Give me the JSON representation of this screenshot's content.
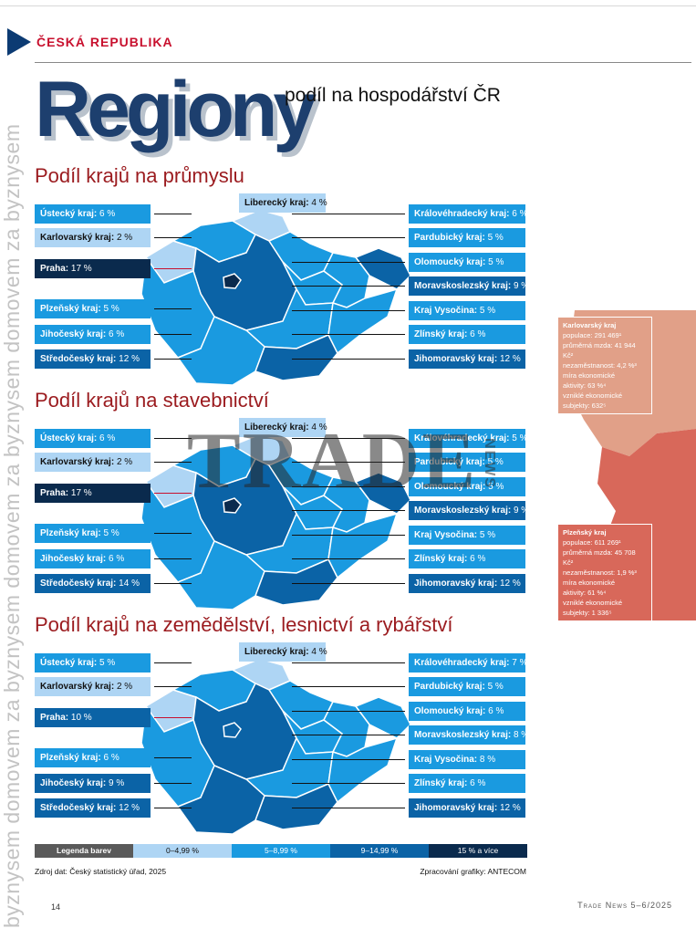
{
  "header": {
    "section": "ČESKÁ REPUBLIKA",
    "title": "Regiony",
    "subtitle": "podíl na hospodářství ČR"
  },
  "vertical_text": "byznysem domovem za byznysem domovem za byznysem domovem za byznysem",
  "sections": [
    {
      "heading": "Podíl krajů na průmyslu",
      "labels": [
        {
          "name": "Ústecký kraj:",
          "value": "6 %",
          "cls": "c1",
          "side": "L",
          "row": 0
        },
        {
          "name": "Karlovarský kraj:",
          "value": "2 %",
          "cls": "c0",
          "side": "L",
          "row": 1
        },
        {
          "name": "Praha:",
          "value": "17 %",
          "cls": "c3",
          "side": "L",
          "row": 2
        },
        {
          "name": "Plzeňský kraj:",
          "value": "5 %",
          "cls": "c1",
          "side": "L",
          "row": 4
        },
        {
          "name": "Jihočeský kraj:",
          "value": "6 %",
          "cls": "c1",
          "side": "L",
          "row": 5
        },
        {
          "name": "Středočeský kraj:",
          "value": "12 %",
          "cls": "c2",
          "side": "L",
          "row": 6
        },
        {
          "name": "Liberecký kraj:",
          "value": "4 %",
          "cls": "c0",
          "side": "T",
          "row": 0
        },
        {
          "name": "Královéhradecký kraj:",
          "value": "6 %",
          "cls": "c1",
          "side": "R",
          "row": 0
        },
        {
          "name": "Pardubický kraj:",
          "value": "5 %",
          "cls": "c1",
          "side": "R",
          "row": 1
        },
        {
          "name": "Olomoucký kraj:",
          "value": "5 %",
          "cls": "c1",
          "side": "R",
          "row": 2
        },
        {
          "name": "Moravskoslezský kraj:",
          "value": "9 %",
          "cls": "c2",
          "side": "R",
          "row": 3
        },
        {
          "name": "Kraj Vysočina:",
          "value": "5 %",
          "cls": "c1",
          "side": "R",
          "row": 4
        },
        {
          "name": "Zlínský kraj:",
          "value": "6 %",
          "cls": "c1",
          "side": "R",
          "row": 5
        },
        {
          "name": "Jihomoravský kraj:",
          "value": "12 %",
          "cls": "c2",
          "side": "R",
          "row": 6
        }
      ]
    },
    {
      "heading": "Podíl krajů na stavebnictví",
      "labels": [
        {
          "name": "Ústecký kraj:",
          "value": "6 %",
          "cls": "c1",
          "side": "L",
          "row": 0
        },
        {
          "name": "Karlovarský kraj:",
          "value": "2 %",
          "cls": "c0",
          "side": "L",
          "row": 1
        },
        {
          "name": "Praha:",
          "value": "17 %",
          "cls": "c3",
          "side": "L",
          "row": 2
        },
        {
          "name": "Plzeňský kraj:",
          "value": "5 %",
          "cls": "c1",
          "side": "L",
          "row": 4
        },
        {
          "name": "Jihočeský kraj:",
          "value": "6 %",
          "cls": "c1",
          "side": "L",
          "row": 5
        },
        {
          "name": "Středočeský kraj:",
          "value": "14 %",
          "cls": "c2",
          "side": "L",
          "row": 6
        },
        {
          "name": "Liberecký kraj:",
          "value": "4 %",
          "cls": "c0",
          "side": "T",
          "row": 0
        },
        {
          "name": "Královéhradecký kraj:",
          "value": "5 %",
          "cls": "c1",
          "side": "R",
          "row": 0
        },
        {
          "name": "Pardubický kraj:",
          "value": "5 %",
          "cls": "c1",
          "side": "R",
          "row": 1
        },
        {
          "name": "Olomoucký kraj:",
          "value": "5 %",
          "cls": "c1",
          "side": "R",
          "row": 2
        },
        {
          "name": "Moravskoslezský kraj:",
          "value": "9 %",
          "cls": "c2",
          "side": "R",
          "row": 3
        },
        {
          "name": "Kraj Vysočina:",
          "value": "5 %",
          "cls": "c1",
          "side": "R",
          "row": 4
        },
        {
          "name": "Zlínský kraj:",
          "value": "6 %",
          "cls": "c1",
          "side": "R",
          "row": 5
        },
        {
          "name": "Jihomoravský kraj:",
          "value": "12 %",
          "cls": "c2",
          "side": "R",
          "row": 6
        }
      ]
    },
    {
      "heading": "Podíl krajů na zemědělství, lesnictví a rybářství",
      "labels": [
        {
          "name": "Ústecký kraj:",
          "value": "5 %",
          "cls": "c1",
          "side": "L",
          "row": 0
        },
        {
          "name": "Karlovarský kraj:",
          "value": "2 %",
          "cls": "c0",
          "side": "L",
          "row": 1
        },
        {
          "name": "Praha:",
          "value": "10 %",
          "cls": "c2",
          "side": "L",
          "row": 2
        },
        {
          "name": "Plzeňský kraj:",
          "value": "6 %",
          "cls": "c1",
          "side": "L",
          "row": 4
        },
        {
          "name": "Jihočeský kraj:",
          "value": "9 %",
          "cls": "c2",
          "side": "L",
          "row": 5
        },
        {
          "name": "Středočeský kraj:",
          "value": "12 %",
          "cls": "c2",
          "side": "L",
          "row": 6
        },
        {
          "name": "Liberecký kraj:",
          "value": "4 %",
          "cls": "c0",
          "side": "T",
          "row": 0
        },
        {
          "name": "Královéhradecký kraj:",
          "value": "7 %",
          "cls": "c1",
          "side": "R",
          "row": 0
        },
        {
          "name": "Pardubický kraj:",
          "value": "5 %",
          "cls": "c1",
          "side": "R",
          "row": 1
        },
        {
          "name": "Olomoucký kraj:",
          "value": "6 %",
          "cls": "c1",
          "side": "R",
          "row": 2
        },
        {
          "name": "Moravskoslezský kraj:",
          "value": "8 %",
          "cls": "c1",
          "side": "R",
          "row": 3
        },
        {
          "name": "Kraj Vysočina:",
          "value": "8 %",
          "cls": "c1",
          "side": "R",
          "row": 4
        },
        {
          "name": "Zlínský kraj:",
          "value": "6 %",
          "cls": "c1",
          "side": "R",
          "row": 5
        },
        {
          "name": "Jihomoravský kraj:",
          "value": "12 %",
          "cls": "c2",
          "side": "R",
          "row": 6
        }
      ]
    }
  ],
  "legend": {
    "title": "Legenda barev",
    "items": [
      "0–4,99 %",
      "5–8,99 %",
      "9–14,99 %",
      "15 % a více"
    ]
  },
  "colors": {
    "c0": "#aed5f4",
    "c1": "#1a9ae0",
    "c2": "#0b63a6",
    "c3": "#0a2a4d",
    "accent": "#c8102e",
    "title": "#1d3f6e"
  },
  "footer": {
    "source": "Zdroj dat: Český statistický úřad, 2025",
    "credits": "Zpracování grafiky: ANTECOM",
    "page": "14",
    "magazine": "Trade News 5–6/2025"
  },
  "watermark": {
    "text": "TRADE",
    "sub": "NEWS"
  },
  "side_boxes": [
    {
      "title": "Karlovarský kraj",
      "lines": [
        "populace: 291 469¹",
        "průměrná mzda: 41 944 Kč²",
        "nezaměstnanost: 4,2 %³",
        "míra ekonomické",
        "aktivity: 63 %⁴",
        "vzniklé ekonomické",
        "subjekty: 632⁵"
      ]
    },
    {
      "title": "Plzeňský kraj",
      "lines": [
        "populace: 611 269¹",
        "průměrná mzda: 45 708 Kč²",
        "nezaměstnanost: 1,9 %³",
        "míra ekonomické",
        "aktivity: 61 %⁴",
        "vzniklé ekonomické",
        "subjekty: 1 336⁵"
      ]
    }
  ]
}
